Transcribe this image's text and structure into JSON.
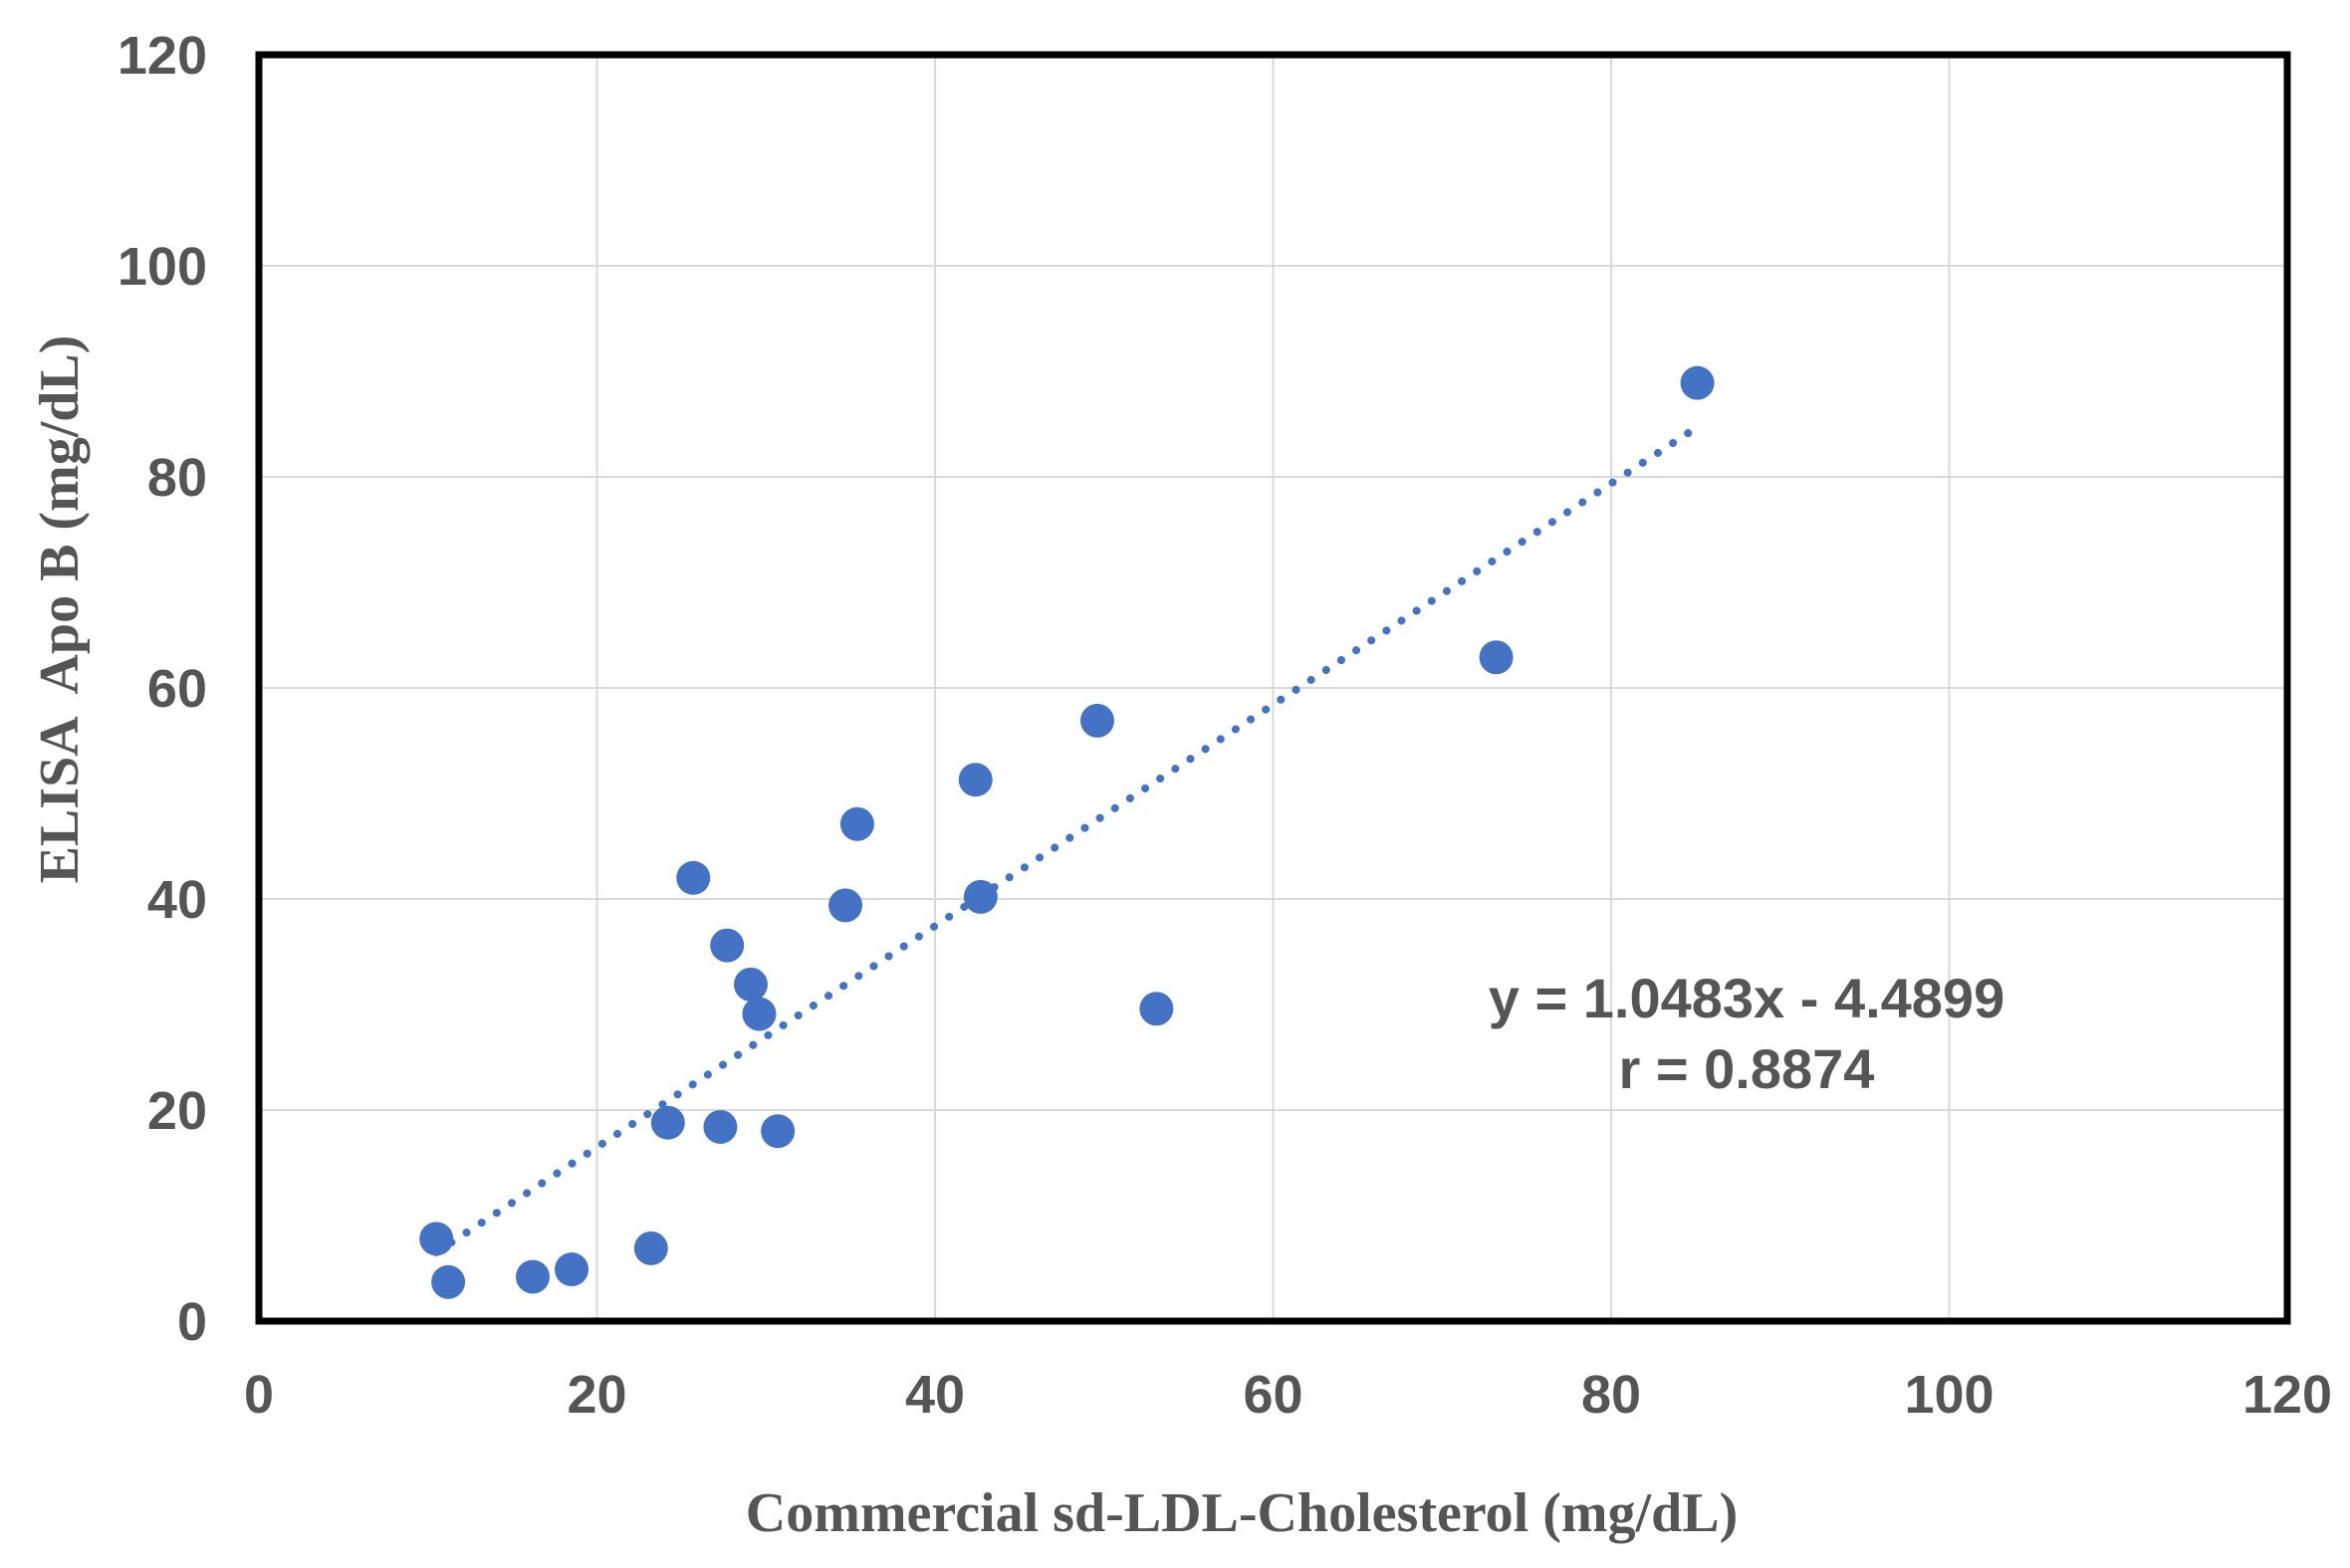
{
  "chart_data": {
    "type": "scatter",
    "xlabel": "Commercial sd-LDL-Cholesterol (mg/dL)",
    "ylabel": "ELISA  Apo B (mg/dL)",
    "xlim": [
      0,
      120
    ],
    "ylim": [
      0,
      120
    ],
    "x_ticks": [
      "0",
      "20",
      "40",
      "60",
      "80",
      "100",
      "120"
    ],
    "y_ticks": [
      "0",
      "20",
      "40",
      "60",
      "80",
      "100",
      "120"
    ],
    "grid": true,
    "series": [
      {
        "color": "#4472C4",
        "points": [
          {
            "x": 10.5,
            "y": 7.8
          },
          {
            "x": 11.2,
            "y": 3.7
          },
          {
            "x": 16.2,
            "y": 4.2
          },
          {
            "x": 18.5,
            "y": 4.9
          },
          {
            "x": 23.2,
            "y": 6.9
          },
          {
            "x": 24.2,
            "y": 18.8
          },
          {
            "x": 25.7,
            "y": 42.0
          },
          {
            "x": 27.3,
            "y": 18.4
          },
          {
            "x": 27.7,
            "y": 35.6
          },
          {
            "x": 29.1,
            "y": 31.9
          },
          {
            "x": 29.6,
            "y": 29.1
          },
          {
            "x": 30.7,
            "y": 18.0
          },
          {
            "x": 34.7,
            "y": 39.4
          },
          {
            "x": 35.4,
            "y": 47.1
          },
          {
            "x": 42.4,
            "y": 51.3
          },
          {
            "x": 42.7,
            "y": 40.2
          },
          {
            "x": 49.6,
            "y": 56.9
          },
          {
            "x": 53.1,
            "y": 29.6
          },
          {
            "x": 73.2,
            "y": 62.9
          },
          {
            "x": 85.1,
            "y": 88.9
          }
        ]
      }
    ],
    "trendline": {
      "style": "dotted",
      "color": "#4472C4",
      "slope": 1.0483,
      "intercept": -4.4899,
      "x_range": [
        10.5,
        85.1
      ]
    },
    "annotations": [
      "y = 1.0483x - 4.4899",
      "r = 0.8874"
    ]
  }
}
